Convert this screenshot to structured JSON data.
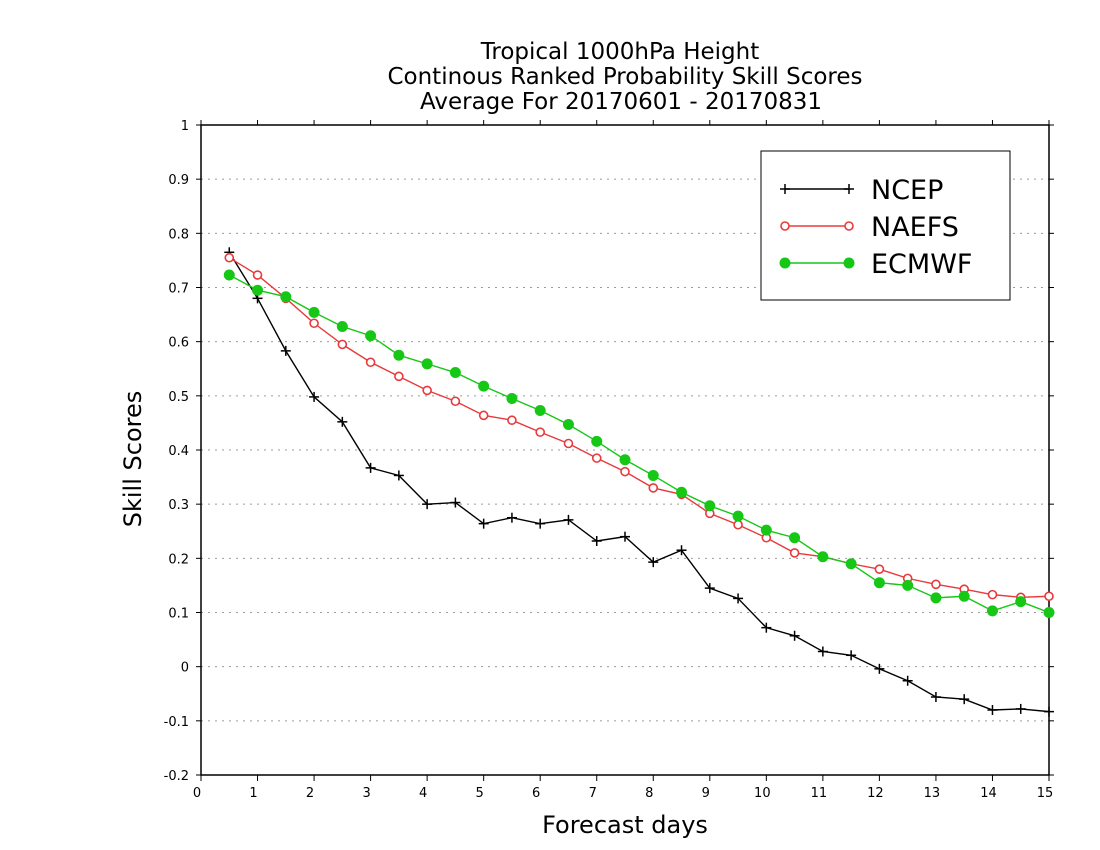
{
  "chart_data": {
    "type": "line",
    "title": [
      "Tropical 1000hPa Height",
      "Continous Ranked Probability Skill Scores",
      "Average For 20170601 - 20170831"
    ],
    "xlabel": "Forecast days",
    "ylabel": "Skill Scores",
    "xlim": [
      0,
      15
    ],
    "ylim": [
      -0.2,
      1
    ],
    "xticks": [
      0,
      1,
      2,
      3,
      4,
      5,
      6,
      7,
      8,
      9,
      10,
      11,
      12,
      13,
      14,
      15
    ],
    "yticks": [
      -0.2,
      -0.1,
      0,
      0.1,
      0.2,
      0.3,
      0.4,
      0.5,
      0.6,
      0.7,
      0.8,
      0.9,
      1
    ],
    "ytick_labels": [
      "-0.2",
      "-0.1",
      "0",
      "0.1",
      "0.2",
      "0.3",
      "0.4",
      "0.5",
      "0.6",
      "0.7",
      "0.8",
      "0.9",
      "1"
    ],
    "grid": "horizontal dotted",
    "legend_position": "top-right",
    "x": [
      0.5,
      1.0,
      1.5,
      2.0,
      2.5,
      3.0,
      3.5,
      4.0,
      4.5,
      5.0,
      5.5,
      6.0,
      6.5,
      7.0,
      7.5,
      8.0,
      8.5,
      9.0,
      9.5,
      10.0,
      10.5,
      11.0,
      11.5,
      12.0,
      12.5,
      13.0,
      13.5,
      14.0,
      14.5,
      15.0
    ],
    "series": [
      {
        "name": "NCEP",
        "color": "#000000",
        "marker": "plus",
        "values": [
          0.765,
          0.68,
          0.583,
          0.498,
          0.452,
          0.367,
          0.353,
          0.3,
          0.303,
          0.264,
          0.275,
          0.264,
          0.271,
          0.232,
          0.24,
          0.193,
          0.215,
          0.145,
          0.126,
          0.072,
          0.057,
          0.028,
          0.021,
          -0.004,
          -0.026,
          -0.056,
          -0.06,
          -0.08,
          -0.078,
          -0.083
        ]
      },
      {
        "name": "NAEFS",
        "color": "#e8393c",
        "marker": "open-circle",
        "values": [
          0.755,
          0.723,
          0.68,
          0.634,
          0.595,
          0.562,
          0.536,
          0.51,
          0.49,
          0.464,
          0.455,
          0.433,
          0.412,
          0.385,
          0.36,
          0.33,
          0.318,
          0.283,
          0.262,
          0.238,
          0.21,
          0.203,
          0.19,
          0.18,
          0.163,
          0.152,
          0.143,
          0.133,
          0.128,
          0.13
        ]
      },
      {
        "name": "ECMWF",
        "color": "#16c716",
        "marker": "filled-circle",
        "values": [
          0.723,
          0.695,
          0.683,
          0.654,
          0.628,
          0.611,
          0.575,
          0.559,
          0.543,
          0.518,
          0.495,
          0.473,
          0.447,
          0.416,
          0.382,
          0.353,
          0.322,
          0.297,
          0.278,
          0.252,
          0.238,
          0.203,
          0.19,
          0.155,
          0.15,
          0.127,
          0.13,
          0.103,
          0.12,
          0.1
        ]
      }
    ]
  }
}
